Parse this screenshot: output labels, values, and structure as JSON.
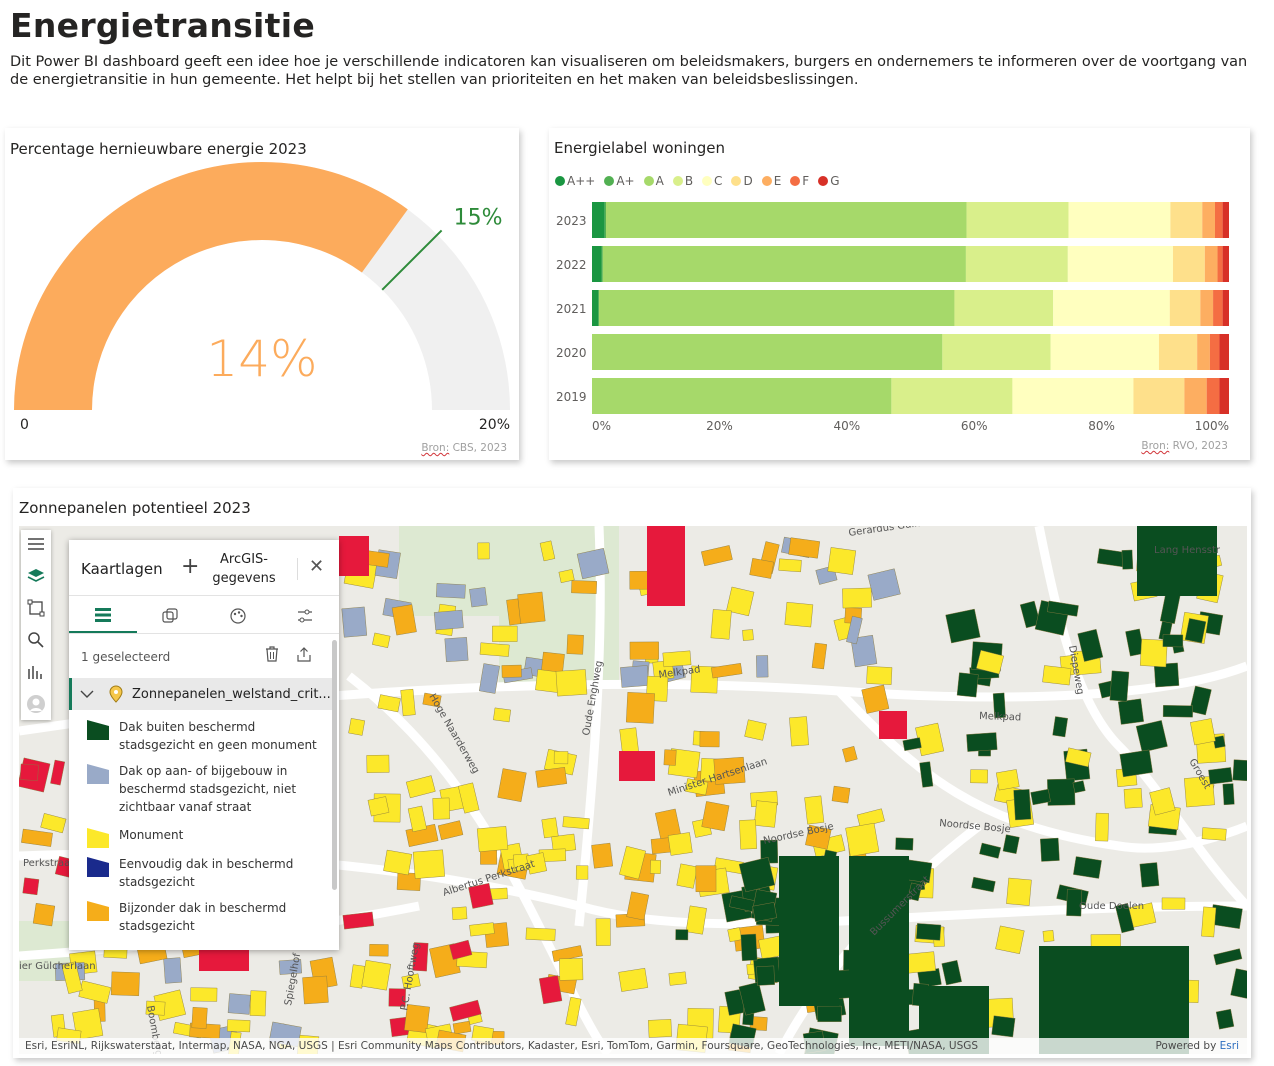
{
  "page": {
    "title": "Energietransitie",
    "intro": "Dit Power BI dashboard geeft een idee hoe je verschillende indicatoren kan visualiseren om beleidsmakers, burgers en ondernemers te informeren over de voortgang van de energietransitie in hun gemeente. Het helpt bij het stellen van prioriteiten en het maken van beleidsbeslissingen."
  },
  "gauge": {
    "title": "Percentage hernieuwbare energie 2023",
    "value_label": "14%",
    "target_label": "15%",
    "min_label": "0",
    "max_label": "20%",
    "source_word": "Bron:",
    "source_rest": " CBS, 2023",
    "fill_color": "#fcab5c",
    "track_color": "#f0f0f0",
    "target_color": "#2e8b3a"
  },
  "bars": {
    "title": "Energielabel woningen",
    "source_word": "Bron:",
    "source_rest": " RVO, 2023",
    "legend": [
      {
        "label": "A++",
        "color": "#1a9641"
      },
      {
        "label": "A+",
        "color": "#52b052"
      },
      {
        "label": "A",
        "color": "#a6d96a"
      },
      {
        "label": "B",
        "color": "#d9ef8b"
      },
      {
        "label": "C",
        "color": "#ffffbf"
      },
      {
        "label": "D",
        "color": "#fee08b"
      },
      {
        "label": "E",
        "color": "#fdae61"
      },
      {
        "label": "F",
        "color": "#f46d43"
      },
      {
        "label": "G",
        "color": "#d73027"
      }
    ]
  },
  "chart_data": [
    {
      "type": "gauge",
      "title": "Percentage hernieuwbare energie 2023",
      "value": 14,
      "target": 15,
      "min": 0,
      "max": 20,
      "unit": "%"
    },
    {
      "type": "bar",
      "stacked": "100%",
      "orientation": "horizontal",
      "title": "Energielabel woningen",
      "categories": [
        "2023",
        "2022",
        "2021",
        "2020",
        "2019"
      ],
      "xlim": [
        0,
        100
      ],
      "xticks": [
        "0%",
        "20%",
        "40%",
        "60%",
        "80%",
        "100%"
      ],
      "series": [
        {
          "name": "A++",
          "values": [
            2,
            1.5,
            1,
            0,
            0
          ]
        },
        {
          "name": "A+",
          "values": [
            0.2,
            0.2,
            0.1,
            0,
            0
          ]
        },
        {
          "name": "A",
          "values": [
            56.6,
            57,
            55.8,
            55,
            47
          ]
        },
        {
          "name": "B",
          "values": [
            16,
            16,
            15.5,
            17,
            19
          ]
        },
        {
          "name": "C",
          "values": [
            16,
            16.5,
            18.3,
            17,
            19
          ]
        },
        {
          "name": "D",
          "values": [
            5,
            5,
            4.8,
            6,
            8
          ]
        },
        {
          "name": "E",
          "values": [
            2,
            2,
            2,
            2,
            3.5
          ]
        },
        {
          "name": "F",
          "values": [
            1.2,
            0.8,
            1.5,
            1.5,
            2
          ]
        },
        {
          "name": "G",
          "values": [
            1,
            1,
            1,
            1.5,
            1.5
          ]
        }
      ]
    }
  ],
  "map": {
    "title": "Zonnepanelen potentieel 2023",
    "attribution": "Esri, EsriNL, Rijkswaterstaat, Intermap, NASA, NGA, USGS | Esri Community Maps Contributors, Kadaster, Esri, TomTom, Garmin, Foursquare, GeoTechnologies, Inc, METI/NASA, USGS",
    "powered_by": "Powered by",
    "powered_brand": "Esri",
    "streets": [
      {
        "label": "Melkpad"
      },
      {
        "label": "Melkpad"
      },
      {
        "label": "Hoge Naarderweg"
      },
      {
        "label": "Oude Enghweg"
      },
      {
        "label": "Minister Hartsenlaan"
      },
      {
        "label": "Noordse Bosje"
      },
      {
        "label": "Noordse Bosje"
      },
      {
        "label": "Albertus Perkstraat"
      },
      {
        "label": "Bussumerstraat"
      },
      {
        "label": "Oude Doelen"
      },
      {
        "label": "Groest"
      },
      {
        "label": "Gerardus Gullaan"
      },
      {
        "label": "Diepeweg"
      },
      {
        "label": "Boomberglaan"
      },
      {
        "label": "P.C. Hooftweg"
      },
      {
        "label": "Spiegelhof"
      },
      {
        "label": "ier Gülcherlaan"
      },
      {
        "label": "Lang Hensstr"
      },
      {
        "label": "Perkstraat"
      }
    ],
    "layers_panel": {
      "title": "Kaartlagen",
      "add_label": "ArcGIS-gegevens",
      "selection_text": "1 geselecteerd",
      "layer_name": "Zonnepanelen_welstand_crit...",
      "legend": [
        {
          "label": "Dak buiten beschermd stadsgezicht en geen monument",
          "color": "#0a4d20"
        },
        {
          "label": "Dak op aan- of bijgebouw in beschermd stadsgezicht, niet zichtbaar vanaf straat",
          "color": "#99aac8"
        },
        {
          "label": "Monument",
          "color": "#fce82a"
        },
        {
          "label": "Eenvoudig dak in beschermd stadsgezicht",
          "color": "#1a2a8c"
        },
        {
          "label": "Bijzonder dak in beschermd stadsgezicht",
          "color": "#f5ad1a"
        }
      ]
    }
  }
}
